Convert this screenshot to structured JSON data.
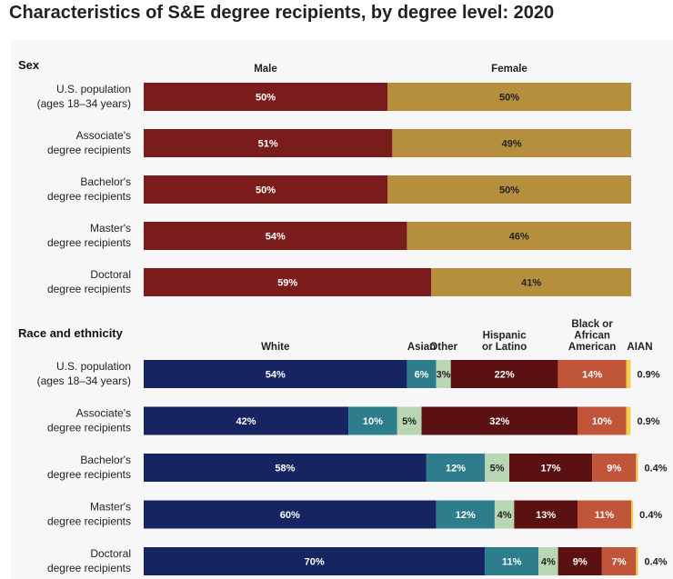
{
  "title": "Characteristics of S&E degree recipients, by degree level: 2020",
  "chart_data": [
    {
      "type": "bar",
      "orientation": "horizontal",
      "stacked": true,
      "panel_title": "Sex",
      "categories": [
        [
          "U.S. population",
          "(ages 18–34 years)"
        ],
        [
          "Associate's",
          "degree recipients"
        ],
        [
          "Bachelor's",
          "degree recipients"
        ],
        [
          "Master's",
          "degree recipients"
        ],
        [
          "Doctoral",
          "degree recipients"
        ]
      ],
      "series": [
        {
          "name": [
            "Male"
          ],
          "color": "#7a1c1c",
          "label_color": "#ffffff",
          "values": [
            50,
            51,
            50,
            54,
            59
          ],
          "labels": [
            "50%",
            "51%",
            "50%",
            "54%",
            "59%"
          ]
        },
        {
          "name": [
            "Female"
          ],
          "color": "#b58e3e",
          "label_color": "#222222",
          "values": [
            50,
            49,
            50,
            46,
            41
          ],
          "labels": [
            "50%",
            "49%",
            "50%",
            "46%",
            "41%"
          ]
        }
      ],
      "xlim": [
        0,
        100
      ],
      "legend": "top"
    },
    {
      "type": "bar",
      "orientation": "horizontal",
      "stacked": true,
      "panel_title": "Race and ethnicity",
      "categories": [
        [
          "U.S. population",
          "(ages 18–34 years)"
        ],
        [
          "Associate's",
          "degree recipients"
        ],
        [
          "Bachelor's",
          "degree recipients"
        ],
        [
          "Master's",
          "degree recipients"
        ],
        [
          "Doctoral",
          "degree recipients"
        ]
      ],
      "series": [
        {
          "name": [
            "White"
          ],
          "color": "#162561",
          "label_color": "#ffffff",
          "values": [
            54,
            42,
            58,
            60,
            70
          ],
          "labels": [
            "54%",
            "42%",
            "58%",
            "60%",
            "70%"
          ]
        },
        {
          "name": [
            "Asian"
          ],
          "color": "#2e7d8c",
          "label_color": "#ffffff",
          "values": [
            6,
            10,
            12,
            12,
            11
          ],
          "labels": [
            "6%",
            "10%",
            "12%",
            "12%",
            "11%"
          ]
        },
        {
          "name": [
            "Other"
          ],
          "color": "#b9d6b4",
          "label_color": "#222222",
          "values": [
            3,
            5,
            5,
            4,
            4
          ],
          "labels": [
            "3%",
            "5%",
            "5%",
            "4%",
            "4%"
          ]
        },
        {
          "name": [
            "Hispanic",
            "or Latino"
          ],
          "color": "#5b1111",
          "label_color": "#ffffff",
          "values": [
            22,
            32,
            17,
            13,
            9
          ],
          "labels": [
            "22%",
            "32%",
            "17%",
            "13%",
            "9%"
          ]
        },
        {
          "name": [
            "Black or",
            "African",
            "American"
          ],
          "color": "#c0553a",
          "label_color": "#ffffff",
          "values": [
            14,
            10,
            9,
            11,
            7
          ],
          "labels": [
            "14%",
            "10%",
            "9%",
            "11%",
            "7%"
          ]
        },
        {
          "name": [
            "AIAN"
          ],
          "color": "#f0cd4e",
          "label_color": "#222222",
          "values": [
            0.9,
            0.9,
            0.4,
            0.4,
            0.4
          ],
          "labels": [
            "0.9%",
            "0.9%",
            "0.4%",
            "0.4%",
            "0.4%"
          ]
        }
      ],
      "xlim": [
        0,
        100
      ],
      "legend": "top"
    }
  ]
}
